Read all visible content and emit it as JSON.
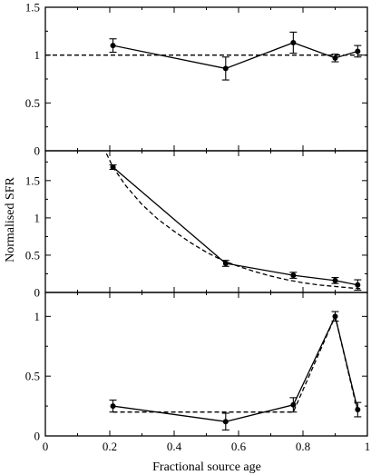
{
  "chart_data": [
    {
      "type": "line",
      "panel": "top",
      "xlim": [
        0,
        1
      ],
      "ylim": [
        0,
        1.5
      ],
      "yticks": [
        0,
        0.5,
        1,
        1.5
      ],
      "ytick_labels": [
        "0",
        "0.5",
        "1",
        "1.5"
      ],
      "grid": false,
      "series": [
        {
          "style": "solid-markers",
          "x": [
            0.21,
            0.56,
            0.77,
            0.9,
            0.97
          ],
          "y": [
            1.1,
            0.86,
            1.13,
            0.97,
            1.04
          ],
          "err": [
            0.07,
            0.12,
            0.11,
            0.04,
            0.06
          ]
        },
        {
          "style": "dashed",
          "x": [
            0,
            1
          ],
          "y": [
            1,
            1
          ]
        }
      ]
    },
    {
      "type": "line",
      "panel": "middle",
      "xlim": [
        0,
        1
      ],
      "ylim": [
        0,
        1.9
      ],
      "yticks": [
        0,
        0.5,
        1,
        1.5
      ],
      "ytick_labels": [
        "0",
        "0.5",
        "1",
        "1.5"
      ],
      "grid": false,
      "series": [
        {
          "style": "solid-markers",
          "x": [
            0.21,
            0.56,
            0.77,
            0.9,
            0.97
          ],
          "y": [
            1.68,
            0.39,
            0.23,
            0.16,
            0.1
          ],
          "err": [
            0.03,
            0.04,
            0.04,
            0.04,
            0.07
          ]
        },
        {
          "style": "dashed",
          "x": [
            0.18,
            0.21,
            0.25,
            0.3,
            0.35,
            0.4,
            0.45,
            0.5,
            0.55,
            0.6,
            0.65,
            0.7,
            0.75,
            0.8,
            0.85,
            0.9,
            0.95,
            0.98
          ],
          "y": [
            1.95,
            1.68,
            1.43,
            1.18,
            0.98,
            0.82,
            0.67,
            0.54,
            0.43,
            0.35,
            0.28,
            0.22,
            0.17,
            0.13,
            0.1,
            0.08,
            0.06,
            0.05
          ]
        }
      ]
    },
    {
      "type": "line",
      "panel": "bottom",
      "xlim": [
        0,
        1
      ],
      "xticks": [
        0,
        0.2,
        0.4,
        0.6,
        0.8,
        1
      ],
      "xtick_labels": [
        "0",
        "0.2",
        "0.4",
        "0.6",
        "0.8",
        "1"
      ],
      "ylim": [
        0,
        1.2
      ],
      "yticks": [
        0,
        0.5,
        1
      ],
      "ytick_labels": [
        "0",
        "0.5",
        "1"
      ],
      "grid": false,
      "series": [
        {
          "style": "solid-markers",
          "x": [
            0.21,
            0.56,
            0.77,
            0.9,
            0.97
          ],
          "y": [
            0.25,
            0.12,
            0.26,
            1.0,
            0.22
          ],
          "err": [
            0.05,
            0.07,
            0.06,
            0.04,
            0.06
          ]
        },
        {
          "style": "dashed",
          "x": [
            0.21,
            0.77,
            0.9,
            0.97
          ],
          "y": [
            0.2,
            0.2,
            1.0,
            0.2
          ]
        }
      ]
    }
  ],
  "ylabel": "Normalised SFR",
  "xlabel": "Fractional source age"
}
